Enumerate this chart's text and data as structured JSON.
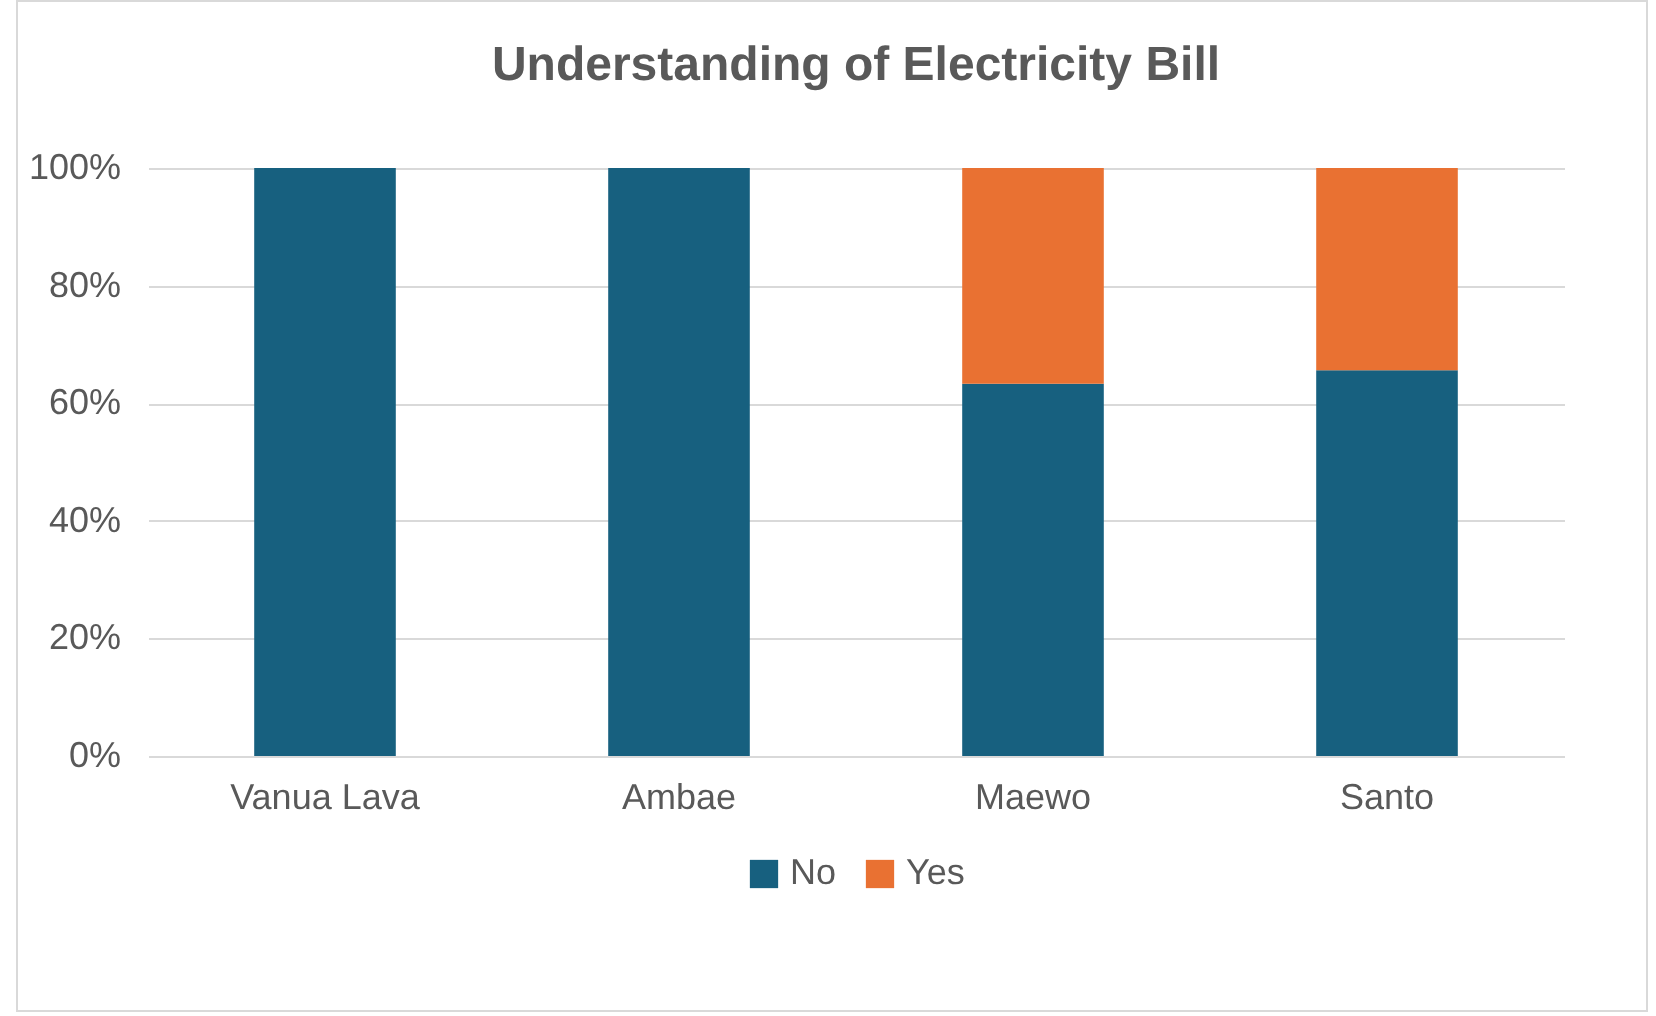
{
  "chart_data": {
    "type": "bar",
    "title": "Understanding of Electricity Bill",
    "categories": [
      "Vanua Lava",
      "Ambae",
      "Maewo",
      "Santo"
    ],
    "stacked": true,
    "series": [
      {
        "name": "No",
        "color": "#17607f",
        "values": [
          100,
          100,
          63.3,
          65.6
        ]
      },
      {
        "name": "Yes",
        "color": "#e97132",
        "values": [
          0,
          0,
          36.7,
          34.4
        ]
      }
    ],
    "ylim": [
      0,
      100
    ],
    "yticks": [
      {
        "value": 0,
        "label": "0%"
      },
      {
        "value": 20,
        "label": "20%"
      },
      {
        "value": 40,
        "label": "40%"
      },
      {
        "value": 60,
        "label": "60%"
      },
      {
        "value": 80,
        "label": "80%"
      },
      {
        "value": 100,
        "label": "100%"
      }
    ],
    "grid": "y",
    "legend": "bottom"
  }
}
